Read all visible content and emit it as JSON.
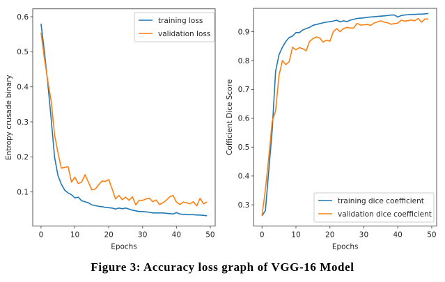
{
  "caption": "Figure 3: Accuracy loss graph of VGG-16 Model",
  "colors": {
    "training": "#1f77b4",
    "validation": "#ff7f0e",
    "axis": "#555555"
  },
  "chart_data": [
    {
      "type": "line",
      "title": "",
      "xlabel": "Epochs",
      "ylabel": "Entropy crusade binary",
      "xlim": [
        -2.45,
        51.45
      ],
      "ylim": [
        0.0025,
        0.6225
      ],
      "xticks": [
        0,
        10,
        20,
        30,
        40,
        50
      ],
      "xtick_labels": [
        "0",
        "10",
        "20",
        "30",
        "40",
        "50"
      ],
      "yticks": [
        0.1,
        0.2,
        0.3,
        0.4,
        0.5,
        0.6
      ],
      "ytick_labels": [
        "0.1",
        "0.2",
        "0.3",
        "0.4",
        "0.5",
        "0.6"
      ],
      "grid": false,
      "legend_position": "upper right",
      "x": [
        0,
        1,
        2,
        3,
        4,
        5,
        6,
        7,
        8,
        9,
        10,
        11,
        12,
        13,
        14,
        15,
        16,
        17,
        18,
        19,
        20,
        21,
        22,
        23,
        24,
        25,
        26,
        27,
        28,
        29,
        30,
        31,
        32,
        33,
        34,
        35,
        36,
        37,
        38,
        39,
        40,
        41,
        42,
        43,
        44,
        45,
        46,
        47,
        48,
        49
      ],
      "series": [
        {
          "name": "training loss",
          "color": "#1f77b4",
          "values": [
            0.58,
            0.5,
            0.41,
            0.308,
            0.199,
            0.147,
            0.122,
            0.105,
            0.097,
            0.092,
            0.083,
            0.085,
            0.075,
            0.072,
            0.069,
            0.063,
            0.061,
            0.059,
            0.058,
            0.056,
            0.055,
            0.054,
            0.051,
            0.054,
            0.052,
            0.054,
            0.051,
            0.048,
            0.046,
            0.044,
            0.044,
            0.043,
            0.042,
            0.04,
            0.04,
            0.04,
            0.04,
            0.039,
            0.038,
            0.037,
            0.041,
            0.037,
            0.036,
            0.035,
            0.035,
            0.035,
            0.034,
            0.034,
            0.033,
            0.032
          ]
        },
        {
          "name": "validation loss",
          "color": "#ff7f0e",
          "values": [
            0.555,
            0.481,
            0.417,
            0.359,
            0.263,
            0.212,
            0.168,
            0.17,
            0.172,
            0.128,
            0.142,
            0.124,
            0.128,
            0.149,
            0.128,
            0.106,
            0.108,
            0.12,
            0.131,
            0.13,
            0.135,
            0.109,
            0.08,
            0.09,
            0.078,
            0.085,
            0.076,
            0.086,
            0.063,
            0.076,
            0.076,
            0.08,
            0.082,
            0.072,
            0.077,
            0.064,
            0.069,
            0.076,
            0.086,
            0.09,
            0.071,
            0.064,
            0.071,
            0.069,
            0.066,
            0.072,
            0.06,
            0.082,
            0.066,
            0.071
          ]
        }
      ]
    },
    {
      "type": "line",
      "title": "",
      "xlabel": "Epochs",
      "ylabel": "Cofficient Dice Score",
      "xlim": [
        -2.45,
        51.45
      ],
      "ylim": [
        0.2264,
        0.981
      ],
      "xticks": [
        0,
        10,
        20,
        30,
        40,
        50
      ],
      "xtick_labels": [
        "0",
        "10",
        "20",
        "30",
        "40",
        "50"
      ],
      "yticks": [
        0.3,
        0.4,
        0.5,
        0.6,
        0.7,
        0.8,
        0.9
      ],
      "ytick_labels": [
        "0.3",
        "0.4",
        "0.5",
        "0.6",
        "0.7",
        "0.8",
        "0.9"
      ],
      "grid": false,
      "legend_position": "lower right",
      "x": [
        0,
        1,
        2,
        3,
        4,
        5,
        6,
        7,
        8,
        9,
        10,
        11,
        12,
        13,
        14,
        15,
        16,
        17,
        18,
        19,
        20,
        21,
        22,
        23,
        24,
        25,
        26,
        27,
        28,
        29,
        30,
        31,
        32,
        33,
        34,
        35,
        36,
        37,
        38,
        39,
        40,
        41,
        42,
        43,
        44,
        45,
        46,
        47,
        48,
        49
      ],
      "series": [
        {
          "name": "training dice coefficient",
          "color": "#1f77b4",
          "values": [
            0.262,
            0.28,
            0.42,
            0.558,
            0.763,
            0.82,
            0.846,
            0.866,
            0.88,
            0.885,
            0.897,
            0.897,
            0.906,
            0.911,
            0.915,
            0.922,
            0.925,
            0.928,
            0.931,
            0.933,
            0.935,
            0.937,
            0.94,
            0.934,
            0.938,
            0.935,
            0.94,
            0.943,
            0.946,
            0.947,
            0.948,
            0.95,
            0.951,
            0.952,
            0.953,
            0.954,
            0.955,
            0.956,
            0.958,
            0.958,
            0.951,
            0.956,
            0.958,
            0.959,
            0.96,
            0.96,
            0.961,
            0.961,
            0.962,
            0.963
          ]
        },
        {
          "name": "validation dice coefficient",
          "color": "#ff7f0e",
          "values": [
            0.262,
            0.353,
            0.466,
            0.59,
            0.625,
            0.748,
            0.8,
            0.786,
            0.796,
            0.846,
            0.837,
            0.845,
            0.841,
            0.834,
            0.866,
            0.876,
            0.882,
            0.878,
            0.864,
            0.871,
            0.867,
            0.9,
            0.911,
            0.9,
            0.911,
            0.915,
            0.913,
            0.913,
            0.929,
            0.923,
            0.924,
            0.925,
            0.922,
            0.93,
            0.934,
            0.938,
            0.933,
            0.931,
            0.926,
            0.928,
            0.93,
            0.94,
            0.937,
            0.938,
            0.941,
            0.938,
            0.946,
            0.933,
            0.944,
            0.944
          ]
        }
      ]
    }
  ]
}
